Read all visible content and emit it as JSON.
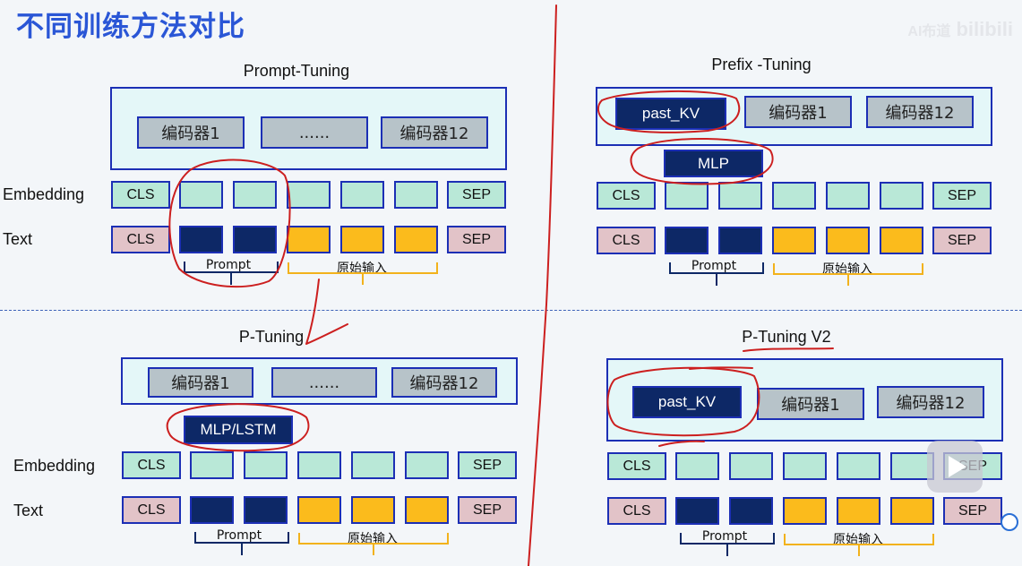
{
  "title": "不同训练方法对比",
  "watermark": {
    "ai": "AI布道",
    "brand": "bilibili"
  },
  "row_labels": {
    "embedding": "Embedding",
    "text": "Text"
  },
  "tokens": {
    "cls": "CLS",
    "sep": "SEP"
  },
  "bracket_labels": {
    "prompt": "Prompt",
    "input": "原始输入"
  },
  "panels": {
    "prompt_tuning": {
      "title": "Prompt-Tuning",
      "encoders": [
        "编码器1",
        "......",
        "编码器12"
      ]
    },
    "prefix_tuning": {
      "title": "Prefix -Tuning",
      "past_kv": "past_KV",
      "encoders": [
        "编码器1",
        "编码器12"
      ],
      "mlp": "MLP"
    },
    "p_tuning": {
      "title": "P-Tuning",
      "encoders": [
        "编码器1",
        "......",
        "编码器12"
      ],
      "mlp": "MLP/LSTM"
    },
    "p_tuning_v2": {
      "title": "P-Tuning V2",
      "past_kv": "past_KV",
      "encoders": [
        "编码器1",
        "编码器12"
      ]
    }
  },
  "colors": {
    "title": "#2a56d6",
    "border": "#1c2fb5",
    "encoder_fill": "#b7c3c9",
    "encoder_bg": "#e4f7f8",
    "embedding": "#b9e8d7",
    "cls_sep_text": "#e2c3c8",
    "prompt_token": "#0d2866",
    "input_token": "#fbbb1c",
    "annotation": "#cc1f1f"
  },
  "icons": [
    "play-icon",
    "app-icon"
  ]
}
